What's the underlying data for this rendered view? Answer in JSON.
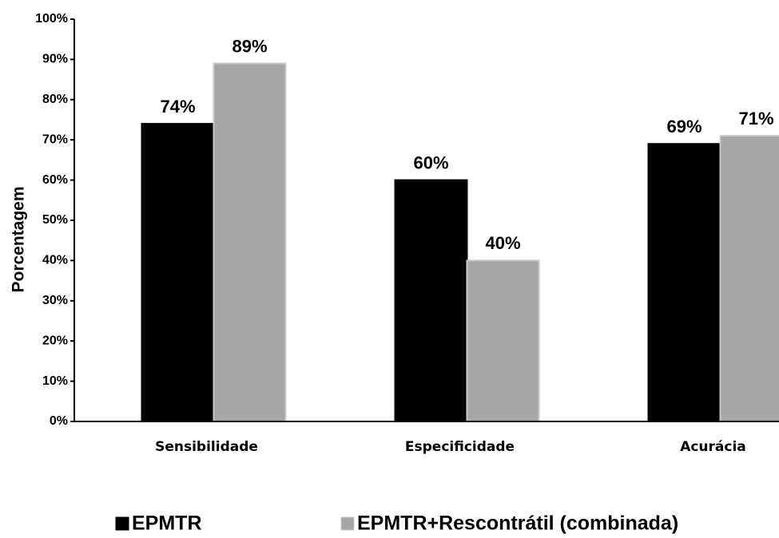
{
  "chart_data": {
    "type": "bar",
    "y_label": "Porcentagem",
    "categories": [
      "Sensibilidade",
      "Especificidade",
      "Acurácia"
    ],
    "series": [
      {
        "name": "EPMTR",
        "color": "#000000",
        "values": [
          74,
          60,
          69
        ],
        "value_labels": [
          "74%",
          "60%",
          "69%"
        ]
      },
      {
        "name": "EPMTR+Rescontrátil (combinada)",
        "color": "#a6a6a6",
        "values": [
          89,
          40,
          71
        ],
        "value_labels": [
          "89%",
          "40%",
          "71%"
        ]
      }
    ],
    "ylim": [
      0,
      100
    ],
    "yticks": [
      {
        "value": 0,
        "label": "0%"
      },
      {
        "value": 10,
        "label": "10%"
      },
      {
        "value": 20,
        "label": "20%"
      },
      {
        "value": 30,
        "label": "30%"
      },
      {
        "value": 40,
        "label": "40%"
      },
      {
        "value": 50,
        "label": "50%"
      },
      {
        "value": 60,
        "label": "60%"
      },
      {
        "value": 70,
        "label": "70%"
      },
      {
        "value": 80,
        "label": "80%"
      },
      {
        "value": 90,
        "label": "90%"
      },
      {
        "value": 100,
        "label": "100%"
      }
    ],
    "grid": false,
    "legend": "bottom"
  }
}
